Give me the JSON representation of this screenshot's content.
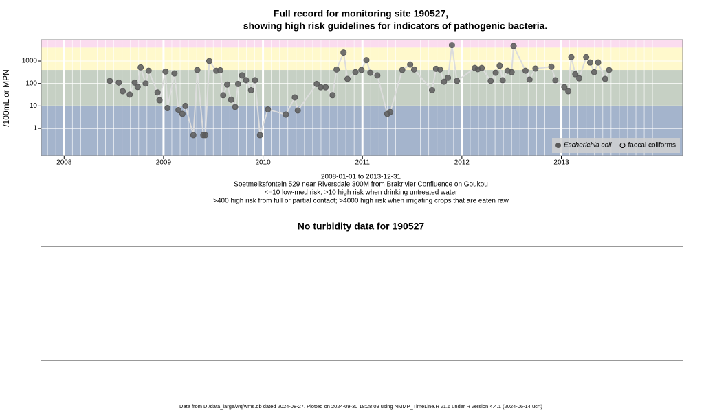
{
  "chart_data": {
    "type": "scatter",
    "title": [
      "Full record for monitoring site 190527,",
      "showing high risk guidelines for indicators of pathogenic bacteria."
    ],
    "ylabel": "/100mL or MPN",
    "notes": [
      "2008-01-01 to 2013-12-31",
      "Soetmelksfontein 529 near Riversdale 300M from Brakrivier Confluence on Goukou",
      "<=10 low-med risk; >10 high risk when drinking untreated water",
      ">400 high risk from full or partial contact; >4000 high risk when irrigating crops that are eaten raw"
    ],
    "log_y": true,
    "grid": true,
    "legend": "bottom-right",
    "xlim": [
      2007.77,
      2014.22
    ],
    "xticks": [
      2008,
      2009,
      2010,
      2011,
      2012,
      2013
    ],
    "ylim": [
      0.06,
      8900
    ],
    "yticks": [
      1,
      10,
      100,
      1000
    ],
    "bands": [
      10,
      400,
      4000
    ],
    "band_colors": [
      "#a4b4cc",
      "#c6d0c4",
      "#fff9cc",
      "#fbdcef"
    ],
    "line_color": "#dcdcdc",
    "series": [
      {
        "name": "Escherichia coli",
        "color": "#5a5a5a",
        "x": [
          2008.46,
          2008.55,
          2008.59,
          2008.66,
          2008.71,
          2008.74,
          2008.77,
          2008.82,
          2008.85,
          2008.94,
          2008.96,
          2009.02,
          2009.04,
          2009.11,
          2009.15,
          2009.19,
          2009.22,
          2009.3,
          2009.34,
          2009.4,
          2009.42,
          2009.46,
          2009.53,
          2009.57,
          2009.6,
          2009.64,
          2009.68,
          2009.72,
          2009.75,
          2009.79,
          2009.83,
          2009.88,
          2009.92,
          2009.97,
          2010.05,
          2010.23,
          2010.32,
          2010.35,
          2010.54,
          2010.58,
          2010.63,
          2010.7,
          2010.74,
          2010.81,
          2010.85,
          2010.93,
          2010.99,
          2011.04,
          2011.08,
          2011.15,
          2011.25,
          2011.28,
          2011.4,
          2011.48,
          2011.52,
          2011.7,
          2011.74,
          2011.78,
          2011.82,
          2011.86,
          2011.9,
          2011.95,
          2012.13,
          2012.16,
          2012.2,
          2012.29,
          2012.34,
          2012.38,
          2012.41,
          2012.46,
          2012.5,
          2012.52,
          2012.64,
          2012.68,
          2012.74,
          2012.9,
          2012.94,
          2013.03,
          2013.07,
          2013.1,
          2013.14,
          2013.18,
          2013.25,
          2013.29,
          2013.33,
          2013.37,
          2013.44,
          2013.48
        ],
        "values": [
          130,
          110,
          45,
          32,
          110,
          70,
          520,
          100,
          370,
          40,
          18,
          340,
          8,
          280,
          6.5,
          4.4,
          10,
          0.5,
          400,
          0.5,
          0.5,
          1000,
          370,
          390,
          30,
          90,
          19,
          9,
          95,
          230,
          140,
          50,
          140,
          0.5,
          7,
          4.1,
          24,
          6.3,
          95,
          68,
          68,
          30,
          420,
          2400,
          160,
          320,
          400,
          1100,
          300,
          230,
          4.4,
          5.4,
          400,
          700,
          420,
          50,
          450,
          420,
          120,
          180,
          5200,
          130,
          490,
          430,
          490,
          130,
          300,
          620,
          140,
          370,
          320,
          4700,
          370,
          150,
          460,
          560,
          140,
          68,
          45,
          1500,
          260,
          170,
          1500,
          860,
          320,
          860,
          160,
          400
        ]
      },
      {
        "name": "faecal coliforms",
        "color": "#000000",
        "x": [],
        "values": []
      }
    ]
  },
  "turbidity_title": "No turbidity data for 190527",
  "footer": "Data from D:/data_large/wq/wms.db dated 2024-08-27. Plotted on 2024-09-30 18:28:09 using NMMP_TimeLine.R v1.6 under R version 4.4.1 (2024-06-14 ucrt)"
}
